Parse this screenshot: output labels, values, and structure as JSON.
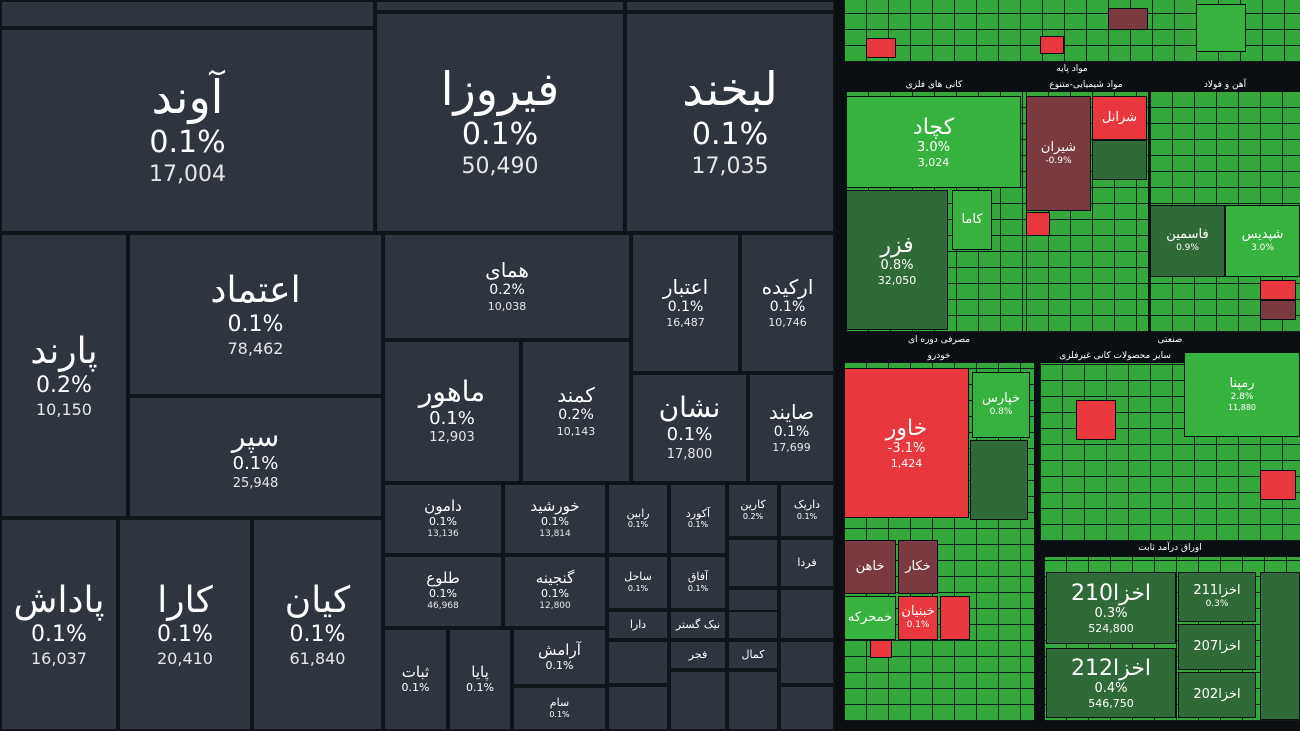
{
  "colors": {
    "neutral": "#2e353e",
    "green": "#38b23e",
    "dark_green": "#2f6b38",
    "light_red": "#e8383d",
    "dark_red": "#7a3a3f",
    "background": "#0b0f14"
  },
  "chart_data": {
    "type": "heatmap",
    "left_tiles": [
      {
        "name": "آوند",
        "change": "0.1%",
        "value": "17,004"
      },
      {
        "name": "فیروزا",
        "change": "0.1%",
        "value": "50,490"
      },
      {
        "name": "لبخند",
        "change": "0.1%",
        "value": "17,035"
      },
      {
        "name": "اعتماد",
        "change": "0.1%",
        "value": "78,462"
      },
      {
        "name": "پارند",
        "change": "0.2%",
        "value": "10,150"
      },
      {
        "name": "سپر",
        "change": "0.1%",
        "value": "25,948"
      },
      {
        "name": "همای",
        "change": "0.2%",
        "value": "10,038"
      },
      {
        "name": "اعتبار",
        "change": "0.1%",
        "value": "16,487"
      },
      {
        "name": "ارکیده",
        "change": "0.1%",
        "value": "10,746"
      },
      {
        "name": "ماهور",
        "change": "0.1%",
        "value": "12,903"
      },
      {
        "name": "کمند",
        "change": "0.2%",
        "value": "10,143"
      },
      {
        "name": "نشان",
        "change": "0.1%",
        "value": "17,800"
      },
      {
        "name": "صایند",
        "change": "0.1%",
        "value": "17,699"
      },
      {
        "name": "پاداش",
        "change": "0.1%",
        "value": "16,037"
      },
      {
        "name": "کارا",
        "change": "0.1%",
        "value": "20,410"
      },
      {
        "name": "کیان",
        "change": "0.1%",
        "value": "61,840"
      },
      {
        "name": "دامون",
        "change": "0.1%",
        "value": "13,136"
      },
      {
        "name": "خورشید",
        "change": "0.1%",
        "value": "13,814"
      },
      {
        "name": "رابین",
        "change": "0.1%",
        "value": ""
      },
      {
        "name": "آکورد",
        "change": "0.1%",
        "value": ""
      },
      {
        "name": "کارین",
        "change": "0.2%",
        "value": ""
      },
      {
        "name": "داریک",
        "change": "0.1%",
        "value": ""
      },
      {
        "name": "طلوع",
        "change": "0.1%",
        "value": "46,968"
      },
      {
        "name": "گنجینه",
        "change": "0.1%",
        "value": "12,800"
      },
      {
        "name": "ساحل",
        "change": "0.1%",
        "value": ""
      },
      {
        "name": "آفاق",
        "change": "0.1%",
        "value": ""
      },
      {
        "name": "آرامش",
        "change": "0.1%",
        "value": ""
      },
      {
        "name": "ثبات",
        "change": "0.1%",
        "value": ""
      },
      {
        "name": "پایا",
        "change": "0.1%",
        "value": ""
      },
      {
        "name": "سام",
        "change": "0.1%",
        "value": ""
      },
      {
        "name": "دارا",
        "change": "",
        "value": ""
      },
      {
        "name": "نیک گستر",
        "change": "",
        "value": ""
      },
      {
        "name": "فجر",
        "change": "",
        "value": ""
      },
      {
        "name": "کمال",
        "change": "",
        "value": ""
      },
      {
        "name": "فردا",
        "change": "",
        "value": ""
      }
    ],
    "sections": [
      {
        "name": "مواد پایه"
      },
      {
        "name": "کانی های فلزی"
      },
      {
        "name": "مواد شیمیایی-متنوع"
      },
      {
        "name": "آهن و فولاد"
      },
      {
        "name": "مصرفی دوره ای"
      },
      {
        "name": "خودرو"
      },
      {
        "name": "صنعتی"
      },
      {
        "name": "سایر محصولات کانی غیرفلزی"
      },
      {
        "name": "اوراق درآمد ثابت"
      }
    ],
    "right_tiles": [
      {
        "name": "کچاد",
        "change": "3.0%",
        "value": "3,024",
        "color": "green"
      },
      {
        "name": "فزر",
        "change": "0.8%",
        "value": "32,050",
        "color": "dark_green"
      },
      {
        "name": "شیران",
        "change": "-0.9%",
        "value": "",
        "color": "dark_red"
      },
      {
        "name": "شرانل",
        "change": "",
        "value": "",
        "color": "light_red"
      },
      {
        "name": "کاما",
        "change": "",
        "value": "",
        "color": "green"
      },
      {
        "name": "فاسمین",
        "change": "0.9%",
        "value": "",
        "color": "dark_green"
      },
      {
        "name": "شپدیس",
        "change": "3.0%",
        "value": "",
        "color": "green"
      },
      {
        "name": "خاور",
        "change": "-3.1%",
        "value": "1,424",
        "color": "light_red"
      },
      {
        "name": "خپارس",
        "change": "0.8%",
        "value": "",
        "color": "green"
      },
      {
        "name": "رمپنا",
        "change": "2.8%",
        "value": "11,880",
        "color": "green"
      },
      {
        "name": "خاهن",
        "change": "",
        "value": "",
        "color": "dark_red"
      },
      {
        "name": "خکار",
        "change": "",
        "value": "",
        "color": "dark_red"
      },
      {
        "name": "خمحرکه",
        "change": "",
        "value": "",
        "color": "green"
      },
      {
        "name": "خبنیان",
        "change": "0.1%",
        "value": "",
        "color": "light_red"
      },
      {
        "name": "اخزا210",
        "change": "0.3%",
        "value": "524,800",
        "color": "dark_green"
      },
      {
        "name": "اخزا212",
        "change": "0.4%",
        "value": "546,750",
        "color": "dark_green"
      },
      {
        "name": "اخزا211",
        "change": "0.3%",
        "value": "",
        "color": "dark_green"
      },
      {
        "name": "اخزا207",
        "change": "",
        "value": "",
        "color": "dark_green"
      },
      {
        "name": "اخزا202",
        "change": "",
        "value": "",
        "color": "dark_green"
      }
    ]
  }
}
